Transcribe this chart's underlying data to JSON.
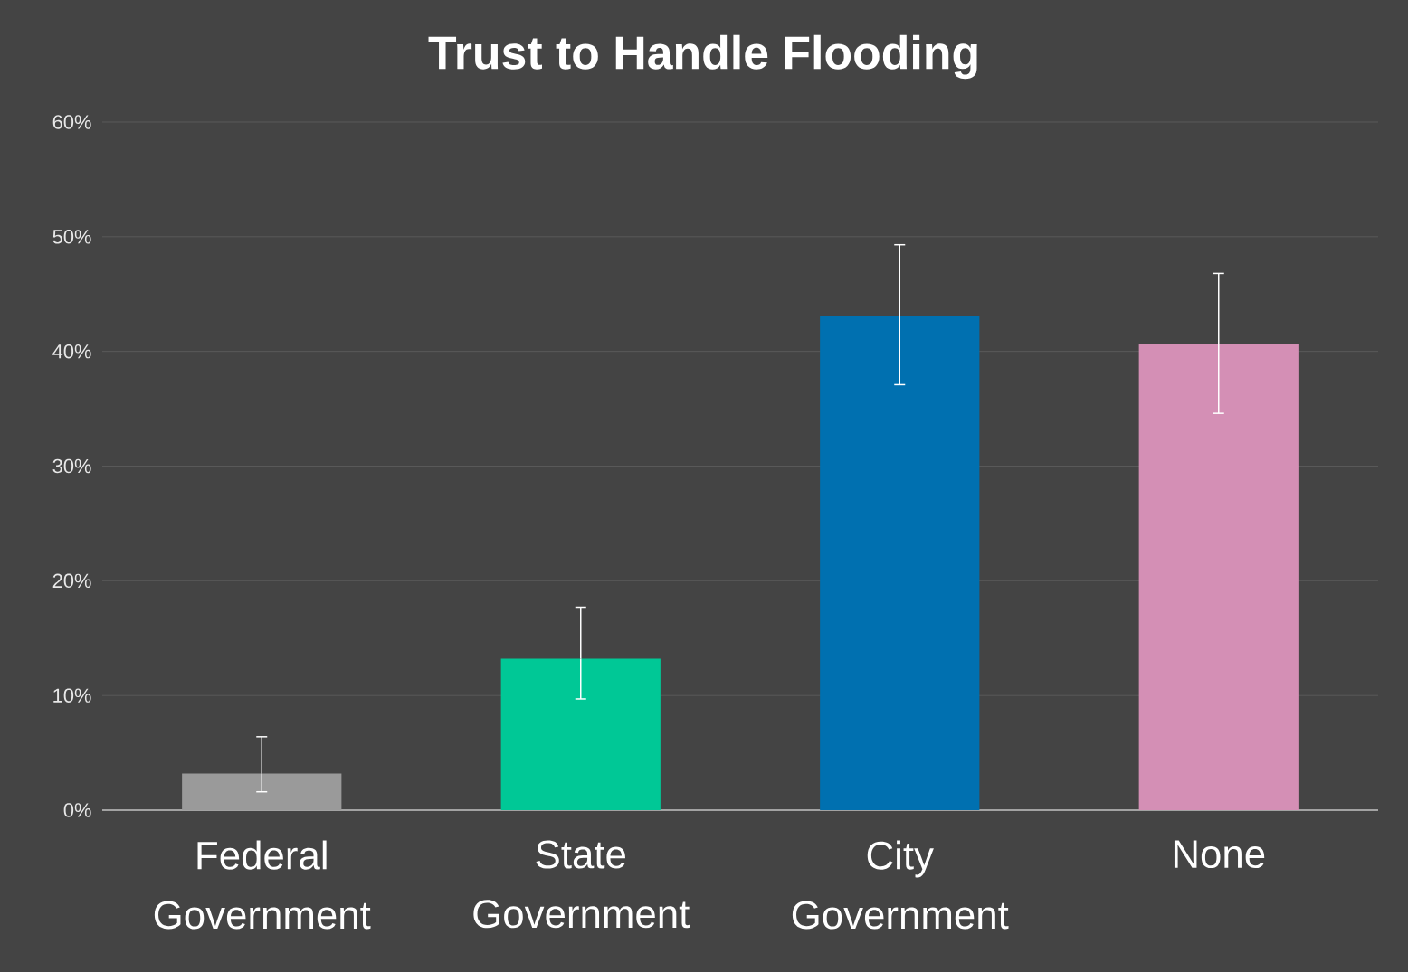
{
  "chart_data": {
    "type": "bar",
    "title": "Trust to Handle Flooding",
    "categories": [
      "Federal Government",
      "State Government",
      "City Government",
      "None"
    ],
    "values": [
      3.2,
      13.2,
      43.1,
      40.6
    ],
    "errors": [
      [
        1.6,
        6.4
      ],
      [
        9.7,
        17.7
      ],
      [
        37.1,
        49.3
      ],
      [
        34.6,
        46.8
      ]
    ],
    "colors": [
      "#9a9a9a",
      "#00c896",
      "#0070b0",
      "#d48fb5"
    ],
    "ylim": [
      0,
      60
    ],
    "yticks": [
      {
        "value": 0,
        "label": "0%"
      },
      {
        "value": 10,
        "label": "10%"
      },
      {
        "value": 20,
        "label": "20%"
      },
      {
        "value": 30,
        "label": "30%"
      },
      {
        "value": 40,
        "label": "40%"
      },
      {
        "value": 50,
        "label": "50%"
      },
      {
        "value": 60,
        "label": "60%"
      }
    ],
    "grid": "y"
  }
}
